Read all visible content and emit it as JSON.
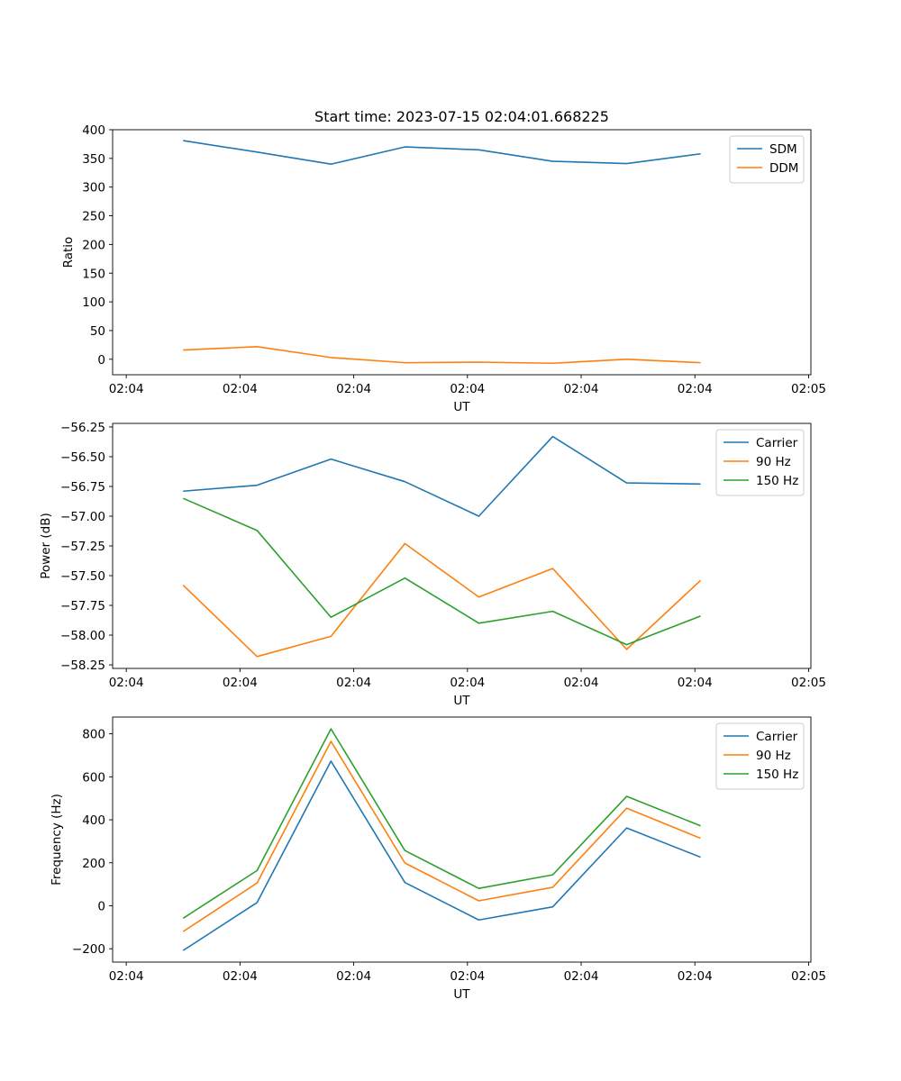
{
  "chart_data": [
    {
      "type": "line",
      "title": "Start time: 2023-07-15 02:04:01.668225",
      "xlabel": "UT",
      "ylabel": "Ratio",
      "x": [
        0.5,
        1.15,
        1.8,
        2.45,
        3.1,
        3.75,
        4.4,
        5.05
      ],
      "xticks": [
        0,
        1,
        2,
        3,
        4,
        5,
        6
      ],
      "xtick_labels": [
        "02:04",
        "02:04",
        "02:04",
        "02:04",
        "02:04",
        "02:04",
        "02:05"
      ],
      "xlim": [
        -0.12,
        6.02
      ],
      "ylim": [
        -27,
        400
      ],
      "yticks": [
        0,
        50,
        100,
        150,
        200,
        250,
        300,
        350,
        400
      ],
      "ytick_labels": [
        "0",
        "50",
        "100",
        "150",
        "200",
        "250",
        "300",
        "350",
        "400"
      ],
      "legend": "upper right",
      "series": [
        {
          "name": "SDM",
          "color": "#1f77b4",
          "values": [
            381,
            361,
            340,
            370,
            365,
            345,
            341,
            358
          ]
        },
        {
          "name": "DDM",
          "color": "#ff7f0e",
          "values": [
            16,
            22,
            3,
            -6,
            -5,
            -7,
            0,
            -6
          ]
        }
      ]
    },
    {
      "type": "line",
      "title": "",
      "xlabel": "UT",
      "ylabel": "Power (dB)",
      "x": [
        0.5,
        1.15,
        1.8,
        2.45,
        3.1,
        3.75,
        4.4,
        5.05
      ],
      "xticks": [
        0,
        1,
        2,
        3,
        4,
        5,
        6
      ],
      "xtick_labels": [
        "02:04",
        "02:04",
        "02:04",
        "02:04",
        "02:04",
        "02:04",
        "02:05"
      ],
      "xlim": [
        -0.12,
        6.02
      ],
      "ylim": [
        -58.28,
        -56.22
      ],
      "yticks": [
        -56.25,
        -56.5,
        -56.75,
        -57.0,
        -57.25,
        -57.5,
        -57.75,
        -58.0,
        -58.25
      ],
      "ytick_labels": [
        "−56.25",
        "−56.50",
        "−56.75",
        "−57.00",
        "−57.25",
        "−57.50",
        "−57.75",
        "−58.00",
        "−58.25"
      ],
      "legend": "upper right",
      "series": [
        {
          "name": "Carrier",
          "color": "#1f77b4",
          "values": [
            -56.79,
            -56.74,
            -56.52,
            -56.71,
            -57.0,
            -56.33,
            -56.72,
            -56.73
          ]
        },
        {
          "name": "90 Hz",
          "color": "#ff7f0e",
          "values": [
            -57.58,
            -58.18,
            -58.01,
            -57.23,
            -57.68,
            -57.44,
            -58.12,
            -57.54
          ]
        },
        {
          "name": "150 Hz",
          "color": "#2ca02c",
          "values": [
            -56.85,
            -57.12,
            -57.85,
            -57.52,
            -57.9,
            -57.8,
            -58.08,
            -57.84
          ]
        }
      ]
    },
    {
      "type": "line",
      "title": "",
      "xlabel": "UT",
      "ylabel": "Frequency (Hz)",
      "x": [
        0.5,
        1.15,
        1.8,
        2.45,
        3.1,
        3.75,
        4.4,
        5.05
      ],
      "xticks": [
        0,
        1,
        2,
        3,
        4,
        5,
        6
      ],
      "xtick_labels": [
        "02:04",
        "02:04",
        "02:04",
        "02:04",
        "02:04",
        "02:04",
        "02:05"
      ],
      "xlim": [
        -0.12,
        6.02
      ],
      "ylim": [
        -262,
        878
      ],
      "yticks": [
        -200,
        0,
        200,
        400,
        600,
        800
      ],
      "ytick_labels": [
        "−200",
        "0",
        "200",
        "400",
        "600",
        "800"
      ],
      "legend": "upper right",
      "series": [
        {
          "name": "Carrier",
          "color": "#1f77b4",
          "values": [
            -208,
            15,
            673,
            108,
            -66,
            -5,
            362,
            226
          ]
        },
        {
          "name": "90 Hz",
          "color": "#ff7f0e",
          "values": [
            -120,
            106,
            765,
            199,
            23,
            86,
            454,
            314
          ]
        },
        {
          "name": "150 Hz",
          "color": "#2ca02c",
          "values": [
            -58,
            164,
            823,
            257,
            81,
            144,
            509,
            372
          ]
        }
      ]
    }
  ]
}
